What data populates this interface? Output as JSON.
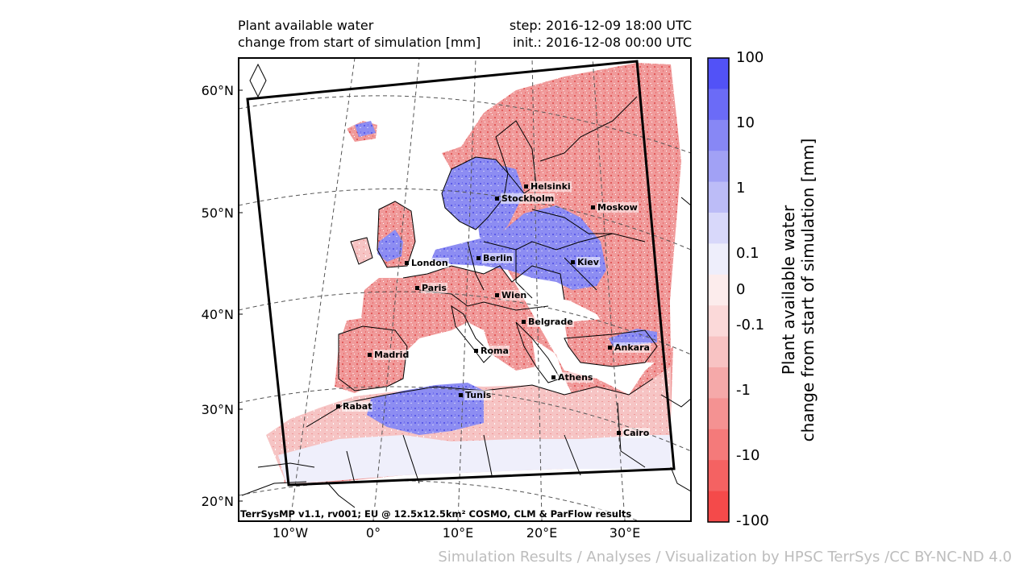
{
  "title": {
    "left_line1": "Plant available water",
    "left_line2": "change from start of simulation [mm]",
    "right_line1": "step: 2016-12-09 18:00 UTC",
    "right_line2": "init.: 2016-12-08 00:00 UTC"
  },
  "latitude_labels": [
    "60°N",
    "50°N",
    "40°N",
    "30°N",
    "20°N"
  ],
  "longitude_labels": [
    "10°W",
    "0°",
    "10°E",
    "20°E",
    "30°E"
  ],
  "cities": [
    "Helsinki",
    "Stockholm",
    "Moskow",
    "London",
    "Berlin",
    "Kiev",
    "Paris",
    "Wien",
    "Belgrade",
    "Madrid",
    "Roma",
    "Ankara",
    "Athens",
    "Tunis",
    "Rabat",
    "Cairo"
  ],
  "attribution": "TerrSysMP v1.1, rv001; EU @ 12.5x12.5km² COSMO, CLM & ParFlow results",
  "colorbar": {
    "title_line1": "Plant available water",
    "title_line2": "change from start of simulation [mm]",
    "tick_labels": [
      "100",
      "10",
      "1",
      "0.1",
      "0",
      "-0.1",
      "-1",
      "-10",
      "-100"
    ],
    "colors": [
      "#5252f7",
      "#6b6bf7",
      "#8787f5",
      "#a1a1f5",
      "#bcbcf7",
      "#d8d8fa",
      "#eeeefb",
      "#fcecec",
      "#fbd9d9",
      "#f8c3c3",
      "#f5a9a9",
      "#f49292",
      "#f47a7a",
      "#f46262",
      "#f44a4a"
    ],
    "positive_color": "#6f6ff2",
    "negative_color": "#ee7b7b",
    "neutral_color": "#efeffb"
  },
  "footer": "Simulation Results / Analyses / Visualization by HPSC TerrSys /CC BY-NC-ND 4.0"
}
